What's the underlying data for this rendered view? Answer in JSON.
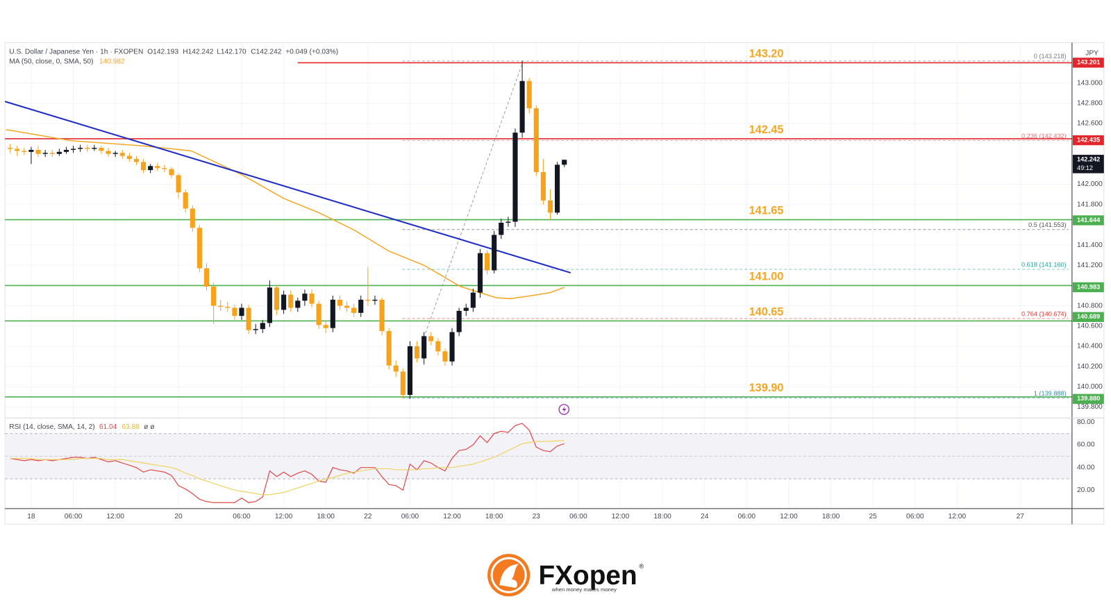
{
  "header": {
    "symbol": "U.S. Dollar / Japanese Yen · 1h · FXOPEN",
    "ohlc": [
      "O142.193",
      "H142.242",
      "L142.170",
      "C142.242",
      "+0.049 (+0.03%)"
    ]
  },
  "logo": {
    "name": "FXopen",
    "mark": "®",
    "tagline": "when money makes money"
  },
  "chart_data": [
    {
      "type": "candlestick",
      "currency": "JPY",
      "up_color": "#131722",
      "down_color": "#f7a21b",
      "x": [
        -3,
        -2,
        -1,
        0,
        1,
        2,
        3,
        4,
        5,
        6,
        7,
        8,
        9,
        10,
        11,
        12,
        13,
        14,
        15,
        16,
        17,
        18,
        19,
        20,
        21,
        22,
        23,
        24,
        25,
        26,
        27,
        28,
        29,
        30,
        31,
        32,
        33,
        34,
        35,
        36,
        37,
        38,
        39,
        40,
        41,
        42,
        43,
        44,
        45,
        46,
        47,
        48,
        49,
        50,
        51,
        52,
        53,
        54,
        55,
        56,
        57,
        58,
        59,
        60,
        61,
        62,
        63,
        64,
        65,
        66,
        67,
        68,
        69,
        70,
        71,
        72,
        73,
        74,
        75,
        76
      ],
      "open": [
        142.36,
        142.35,
        142.33,
        142.32,
        142.34,
        142.3,
        142.31,
        142.3,
        142.32,
        142.34,
        142.35,
        142.36,
        142.35,
        142.36,
        142.33,
        142.3,
        142.31,
        142.28,
        142.25,
        142.22,
        142.14,
        142.18,
        142.16,
        142.15,
        142.09,
        141.92,
        141.76,
        141.57,
        141.17,
        140.99,
        140.8,
        140.79,
        140.78,
        140.7,
        140.78,
        140.56,
        140.57,
        140.63,
        140.98,
        140.76,
        140.91,
        140.78,
        140.85,
        140.92,
        140.82,
        140.61,
        140.58,
        140.86,
        140.8,
        140.78,
        140.73,
        140.86,
        140.85,
        140.86,
        140.55,
        140.21,
        140.15,
        139.92,
        140.4,
        140.28,
        140.5,
        140.45,
        140.35,
        140.25,
        140.54,
        140.75,
        140.78,
        140.93,
        141.32,
        141.15,
        141.5,
        141.62,
        141.63,
        142.51,
        143.02,
        142.75,
        142.12,
        141.84,
        141.72,
        142.193
      ],
      "high": [
        142.4,
        142.38,
        142.36,
        142.37,
        142.38,
        142.34,
        142.34,
        142.35,
        142.37,
        142.38,
        142.39,
        142.39,
        142.39,
        142.38,
        142.36,
        142.33,
        142.34,
        142.31,
        142.28,
        142.25,
        142.2,
        142.21,
        142.19,
        142.17,
        142.11,
        141.95,
        141.79,
        141.6,
        141.22,
        141.03,
        140.86,
        140.84,
        140.81,
        140.82,
        140.81,
        140.62,
        140.66,
        141.05,
        141.0,
        140.95,
        140.95,
        140.88,
        140.96,
        140.96,
        140.85,
        140.65,
        140.9,
        140.9,
        140.84,
        140.82,
        140.9,
        141.18,
        140.9,
        140.88,
        140.58,
        140.26,
        140.18,
        140.45,
        140.45,
        140.54,
        140.54,
        140.48,
        140.38,
        140.58,
        140.78,
        140.82,
        140.97,
        141.36,
        141.35,
        141.54,
        141.66,
        141.68,
        142.55,
        143.22,
        143.05,
        142.78,
        142.25,
        141.95,
        142.22,
        142.242
      ],
      "low": [
        142.31,
        142.28,
        142.29,
        142.2,
        142.27,
        142.27,
        142.27,
        142.28,
        142.3,
        142.31,
        142.32,
        142.32,
        142.33,
        142.3,
        142.27,
        142.27,
        142.25,
        142.22,
        142.19,
        142.11,
        142.11,
        142.13,
        142.12,
        142.06,
        141.86,
        141.72,
        141.53,
        141.13,
        140.95,
        140.62,
        140.75,
        140.74,
        140.66,
        140.66,
        140.52,
        140.52,
        140.53,
        140.59,
        140.71,
        140.72,
        140.74,
        140.74,
        140.8,
        140.78,
        140.57,
        140.53,
        140.54,
        140.76,
        140.74,
        140.69,
        140.69,
        140.8,
        140.81,
        140.51,
        140.17,
        140.1,
        139.89,
        139.88,
        140.24,
        140.22,
        140.41,
        140.31,
        140.21,
        140.21,
        140.5,
        140.7,
        140.74,
        140.88,
        141.11,
        141.12,
        141.46,
        141.58,
        141.58,
        142.46,
        142.7,
        142.08,
        141.8,
        141.65,
        141.7,
        142.17
      ],
      "close": [
        142.35,
        142.33,
        142.32,
        142.34,
        142.3,
        142.31,
        142.3,
        142.32,
        142.34,
        142.35,
        142.36,
        142.35,
        142.36,
        142.33,
        142.3,
        142.31,
        142.28,
        142.25,
        142.22,
        142.14,
        142.18,
        142.16,
        142.15,
        142.09,
        141.92,
        141.76,
        141.57,
        141.17,
        140.99,
        140.8,
        140.79,
        140.78,
        140.7,
        140.78,
        140.56,
        140.57,
        140.63,
        140.98,
        140.76,
        140.91,
        140.78,
        140.85,
        140.92,
        140.82,
        140.61,
        140.58,
        140.86,
        140.8,
        140.78,
        140.73,
        140.86,
        140.85,
        140.86,
        140.55,
        140.21,
        140.15,
        139.92,
        140.4,
        140.28,
        140.5,
        140.45,
        140.35,
        140.25,
        140.54,
        140.75,
        140.78,
        140.93,
        141.32,
        141.15,
        141.5,
        141.62,
        141.63,
        142.51,
        143.02,
        142.75,
        142.12,
        141.84,
        141.72,
        142.193,
        142.242
      ],
      "ma": {
        "name": "MA (50, close, 0, SMA, 50)",
        "color": "#f5a623",
        "x": [
          -3.6,
          5.7,
          15.8,
          22.8,
          29.9,
          36,
          41,
          46,
          51,
          56,
          61.2,
          66.3,
          68.3,
          71.3,
          74,
          76
        ],
        "values": [
          142.54,
          142.43,
          142.38,
          142.33,
          142.1,
          141.86,
          141.72,
          141.55,
          141.34,
          141.2,
          140.99,
          140.88,
          140.87,
          140.9,
          140.93,
          140.982
        ]
      },
      "trendline": {
        "color": "#1e2bc8",
        "x": [
          -3.74,
          76.9
        ],
        "values": [
          142.818,
          141.126
        ]
      },
      "fib_trend": {
        "color": "#9e9e9e",
        "x": [
          56.2,
          70
        ],
        "values": [
          140.53,
          143.19
        ]
      },
      "levels": [
        {
          "value": 143.2,
          "label": "143.20",
          "color": "#e3262b",
          "start": 38
        },
        {
          "value": 142.45,
          "label": "142.45",
          "color": "#e3262b"
        },
        {
          "value": 141.65,
          "label": "141.65",
          "color": "#4caf50"
        },
        {
          "value": 141.0,
          "label": "141.00",
          "color": "#4caf50"
        },
        {
          "value": 140.65,
          "label": "140.65",
          "color": "#4caf50"
        },
        {
          "value": 139.9,
          "label": "139.90",
          "color": "#4caf50"
        }
      ],
      "level_label_color": "#f5a623",
      "fib_x": [
        52.9,
        147.9
      ],
      "fib": [
        {
          "value": 143.218,
          "label": "0 (143.218)",
          "color": "#787b86"
        },
        {
          "value": 142.432,
          "label": "0.236 (142.432)",
          "color": "#e57373"
        },
        {
          "value": 141.553,
          "label": "0.5 (141.553)",
          "color": "#555555"
        },
        {
          "value": 141.16,
          "label": "0.618 (141.160)",
          "color": "#26a69a"
        },
        {
          "value": 140.674,
          "label": "0.764 (140.674)",
          "color": "#e53935"
        },
        {
          "value": 139.888,
          "label": "1 (139.888)",
          "color": "#2f8fb3"
        }
      ],
      "price_tags": [
        {
          "value": 143.201,
          "label": "143.201",
          "color": "#e3262b"
        },
        {
          "value": 142.435,
          "label": "142.435",
          "color": "#e3262b"
        },
        {
          "value": 142.242,
          "label": "142.242",
          "color": "#131722",
          "countdown": "49:12"
        },
        {
          "value": 141.644,
          "label": "141.644",
          "color": "#4caf50"
        },
        {
          "value": 140.983,
          "label": "140.983",
          "color": "#4caf50"
        },
        {
          "value": 140.689,
          "label": "140.689",
          "color": "#4caf50"
        },
        {
          "value": 139.88,
          "label": "139.880",
          "color": "#4caf50"
        }
      ],
      "xlim": [
        -3.74,
        148.38
      ],
      "ylim": [
        139.741,
        143.385
      ],
      "grid": true,
      "yticks": [
        {
          "value": 143,
          "label": "143.000"
        },
        {
          "value": 142.8,
          "label": "142.800"
        },
        {
          "value": 142.6,
          "label": "142.600"
        },
        {
          "value": 142,
          "label": "142.000"
        },
        {
          "value": 141.8,
          "label": "141.800"
        },
        {
          "value": 141.4,
          "label": "141.400"
        },
        {
          "value": 141.2,
          "label": "141.200"
        },
        {
          "value": 140.8,
          "label": "140.800"
        },
        {
          "value": 140.6,
          "label": "140.600"
        },
        {
          "value": 140.4,
          "label": "140.400"
        },
        {
          "value": 140.2,
          "label": "140.200"
        },
        {
          "value": 140,
          "label": "140.000"
        },
        {
          "value": 139.8,
          "label": "139.800"
        }
      ],
      "xticks": [
        {
          "value": 0,
          "label": "18"
        },
        {
          "value": 6,
          "label": "06:00"
        },
        {
          "value": 12,
          "label": "12:00"
        },
        {
          "value": 21,
          "label": "20"
        },
        {
          "value": 30,
          "label": "06:00"
        },
        {
          "value": 36,
          "label": "12:00"
        },
        {
          "value": 42,
          "label": "18:00"
        },
        {
          "value": 48,
          "label": "22"
        },
        {
          "value": 54,
          "label": "06:00"
        },
        {
          "value": 60,
          "label": "12:00"
        },
        {
          "value": 66,
          "label": "18:00"
        },
        {
          "value": 72,
          "label": "23"
        },
        {
          "value": 78,
          "label": "06:00"
        },
        {
          "value": 84,
          "label": "12:00"
        },
        {
          "value": 90,
          "label": "18:00"
        },
        {
          "value": 96,
          "label": "24"
        },
        {
          "value": 102,
          "label": "06:00"
        },
        {
          "value": 108,
          "label": "12:00"
        },
        {
          "value": 114,
          "label": "18:00"
        },
        {
          "value": 120,
          "label": "25"
        },
        {
          "value": 126,
          "label": "06:00"
        },
        {
          "value": 132,
          "label": "12:00"
        },
        {
          "value": 141,
          "label": "27"
        }
      ]
    },
    {
      "type": "line",
      "title": "RSI (14, close, SMA, 14, 2)",
      "flags": "ø ø",
      "series": [
        {
          "color": "#e04848",
          "values": [
            48,
            47,
            46,
            47,
            46,
            47,
            46,
            47,
            48,
            49,
            49,
            48,
            49,
            47,
            45,
            46,
            44,
            42,
            40,
            36,
            38,
            37,
            36,
            33,
            24,
            21,
            17,
            12,
            10,
            9,
            9,
            9,
            9,
            13,
            9,
            10,
            14,
            37,
            32,
            36,
            32,
            35,
            37,
            34,
            28,
            27,
            40,
            38,
            37,
            35,
            40,
            40,
            40,
            32,
            25,
            24,
            20,
            43,
            38,
            46,
            44,
            40,
            37,
            48,
            55,
            56,
            60,
            68,
            62,
            70,
            72,
            71,
            77,
            79,
            73,
            58,
            55,
            54,
            59,
            61.04
          ]
        },
        {
          "color": "#f0d264",
          "values": [
            48,
            48,
            48,
            48,
            47,
            47,
            47,
            47,
            47,
            47,
            48,
            48,
            48,
            48,
            47,
            47,
            47,
            46,
            45,
            44,
            43,
            42,
            41,
            40,
            38,
            35,
            33,
            30,
            28,
            26,
            24,
            22,
            20,
            19,
            18,
            17,
            16,
            16,
            17,
            18,
            20,
            22,
            24,
            26,
            28,
            30,
            31,
            33,
            35,
            36,
            37,
            38,
            39,
            39,
            39,
            38,
            38,
            38,
            38,
            39,
            39,
            40,
            40,
            40,
            41,
            42,
            43,
            45,
            47,
            49,
            52,
            55,
            58,
            61,
            62,
            63,
            63,
            63.2,
            63.5,
            63.88
          ]
        }
      ],
      "ylim": [
        3.75,
        83.75
      ],
      "bands": [
        70,
        30
      ],
      "midline": 50,
      "yticks": [
        {
          "value": 80,
          "label": "80.00"
        },
        {
          "value": 60,
          "label": "60.00"
        },
        {
          "value": 40,
          "label": "40.00"
        },
        {
          "value": 20,
          "label": "20.00"
        }
      ]
    }
  ]
}
